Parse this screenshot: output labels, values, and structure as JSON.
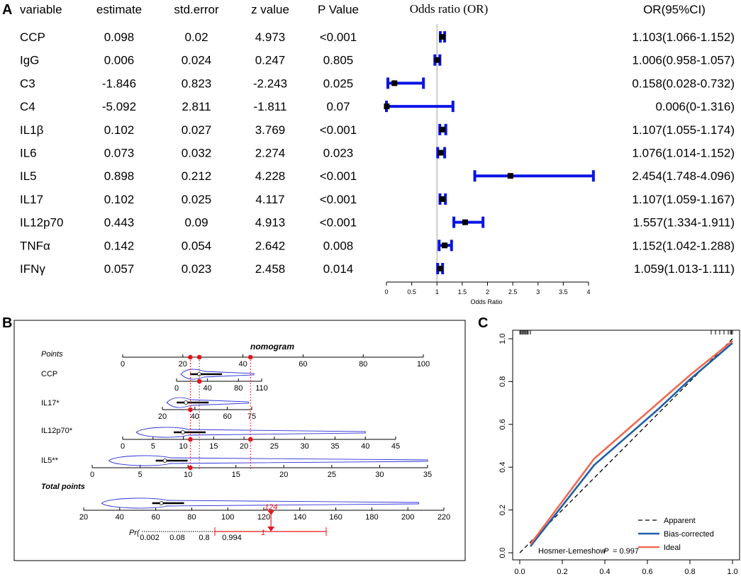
{
  "panels": {
    "a": "A",
    "b": "B",
    "c": "C"
  },
  "chart_data": [
    {
      "type": "forest",
      "title": "Odds ratio (OR)",
      "xlabel": "Odds Ratio",
      "xlim": [
        0,
        4
      ],
      "xticks": [
        "0",
        "0.5",
        "1",
        "1.5",
        "2",
        "2.5",
        "3",
        "3.5",
        "4"
      ],
      "reference_line": 1,
      "columns": [
        "variable",
        "estimate",
        "std.error",
        "z value",
        "P Value"
      ],
      "or_header": "OR(95%CI)",
      "rows": [
        {
          "variable": "CCP",
          "estimate": "0.098",
          "se": "0.02",
          "z": "4.973",
          "p": "<0.001",
          "or": 1.103,
          "lo": 1.066,
          "hi": 1.152,
          "label": "1.103(1.066-1.152)"
        },
        {
          "variable": "IgG",
          "estimate": "0.006",
          "se": "0.024",
          "z": "0.247",
          "p": "0.805",
          "or": 1.006,
          "lo": 0.958,
          "hi": 1.057,
          "label": "1.006(0.958-1.057)"
        },
        {
          "variable": "C3",
          "estimate": "-1.846",
          "se": "0.823",
          "z": "-2.243",
          "p": "0.025",
          "or": 0.158,
          "lo": 0.028,
          "hi": 0.732,
          "label": "0.158(0.028-0.732)"
        },
        {
          "variable": "C4",
          "estimate": "-5.092",
          "se": "2.811",
          "z": "-1.811",
          "p": "0.07",
          "or": 0.006,
          "lo": 0,
          "hi": 1.316,
          "label": "0.006(0-1.316)"
        },
        {
          "variable": "IL1β",
          "estimate": "0.102",
          "se": "0.027",
          "z": "3.769",
          "p": "<0.001",
          "or": 1.107,
          "lo": 1.055,
          "hi": 1.174,
          "label": "1.107(1.055-1.174)"
        },
        {
          "variable": "IL6",
          "estimate": "0.073",
          "se": "0.032",
          "z": "2.274",
          "p": "0.023",
          "or": 1.076,
          "lo": 1.014,
          "hi": 1.152,
          "label": "1.076(1.014-1.152)"
        },
        {
          "variable": "IL5",
          "estimate": "0.898",
          "se": "0.212",
          "z": "4.228",
          "p": "<0.001",
          "or": 2.454,
          "lo": 1.748,
          "hi": 4.096,
          "label": "2.454(1.748-4.096)"
        },
        {
          "variable": "IL17",
          "estimate": "0.102",
          "se": "0.025",
          "z": "4.117",
          "p": "<0.001",
          "or": 1.107,
          "lo": 1.059,
          "hi": 1.167,
          "label": "1.107(1.059-1.167)"
        },
        {
          "variable": "IL12p70",
          "estimate": "0.443",
          "se": "0.09",
          "z": "4.913",
          "p": "<0.001",
          "or": 1.557,
          "lo": 1.334,
          "hi": 1.911,
          "label": "1.557(1.334-1.911)"
        },
        {
          "variable": "TNFα",
          "estimate": "0.142",
          "se": "0.054",
          "z": "2.642",
          "p": "0.008",
          "or": 1.152,
          "lo": 1.042,
          "hi": 1.288,
          "label": "1.152(1.042-1.288)"
        },
        {
          "variable": "IFNγ",
          "estimate": "0.057",
          "se": "0.023",
          "z": "2.458",
          "p": "0.014",
          "or": 1.059,
          "lo": 1.013,
          "hi": 1.111,
          "label": "1.059(1.013-1.111)"
        }
      ]
    },
    {
      "type": "nomogram",
      "title": "nomogram",
      "scales": [
        {
          "label": "Points",
          "min": 0,
          "max": 100,
          "ticks": [
            "0",
            "20",
            "40",
            "60",
            "80",
            "100"
          ],
          "italic": true
        },
        {
          "label": "CCP",
          "min": 0,
          "max": 110,
          "ticks": [
            "0",
            "40",
            "80",
            "110"
          ]
        },
        {
          "label": "IL17*",
          "min": 20,
          "max": 75,
          "ticks": [
            "20",
            "40",
            "60",
            "75"
          ]
        },
        {
          "label": "IL12p70*",
          "min": 0,
          "max": 45,
          "ticks": [
            "0",
            "5",
            "10",
            "15",
            "20",
            "25",
            "30",
            "35",
            "40",
            "45"
          ]
        },
        {
          "label": "IL5**",
          "min": 0,
          "max": 35,
          "ticks": [
            "0",
            "5",
            "10",
            "15",
            "20",
            "25",
            "30",
            "35"
          ]
        },
        {
          "label": "Total points",
          "min": 20,
          "max": 220,
          "ticks": [
            "20",
            "40",
            "60",
            "80",
            "100",
            "120",
            "140",
            "160",
            "180",
            "200",
            "220"
          ],
          "italic": true
        }
      ],
      "prob_label": "Pr(",
      "prob_ticks": [
        "0.002",
        "0.08",
        "0.8",
        "0.994"
      ],
      "selected_points": [
        22.5,
        25.5,
        42.5
      ],
      "selected_total": "124",
      "selected_prob": "1"
    },
    {
      "type": "line",
      "title": "",
      "xlim": [
        0,
        1
      ],
      "ylim": [
        0,
        1
      ],
      "xticks": [
        "0.0",
        "0.2",
        "0.4",
        "0.6",
        "0.8",
        "1.0"
      ],
      "yticks": [
        "0.0",
        "0.2",
        "0.4",
        "0.6",
        "0.8",
        "1.0"
      ],
      "series": [
        {
          "name": "Apparent",
          "color": "#000000",
          "dash": true,
          "x": [
            0,
            1
          ],
          "y": [
            0,
            1
          ]
        },
        {
          "name": "Bias-corrected",
          "color": "#1f5fa8",
          "x": [
            0.05,
            0.35,
            0.5,
            0.65,
            0.8,
            1.0
          ],
          "y": [
            0.03,
            0.41,
            0.54,
            0.67,
            0.81,
            0.98
          ]
        },
        {
          "name": "Ideal",
          "color": "#ee6a50",
          "x": [
            0.05,
            0.35,
            0.5,
            0.65,
            0.8,
            1.0
          ],
          "y": [
            0.04,
            0.44,
            0.57,
            0.7,
            0.83,
            0.99
          ]
        }
      ],
      "annotation_text": "Hosmer-Lemeshow",
      "annotation_p": "P",
      "annotation_value": "= 0.997",
      "legend_position": "bottom-right"
    }
  ]
}
